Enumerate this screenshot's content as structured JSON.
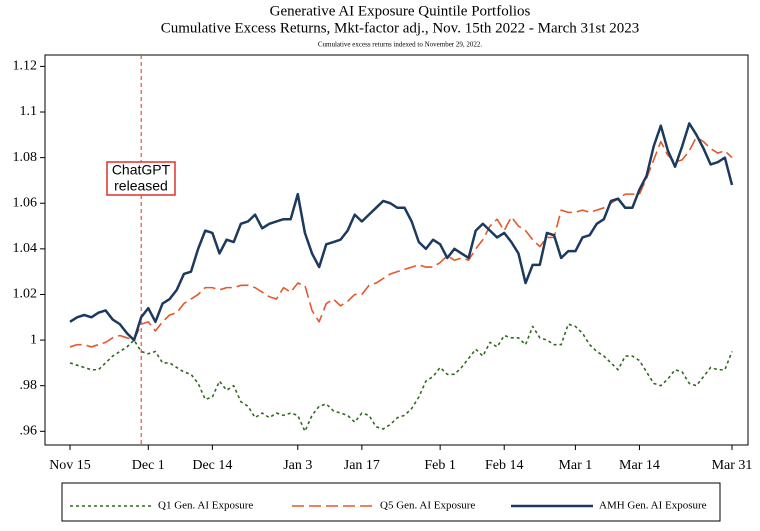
{
  "chart_data": {
    "type": "line",
    "title": [
      "Generative AI Exposure Quintile Portfolios",
      "Cumulative Excess Returns, Mkt-factor adj., Nov. 15th 2022 - March 31st 2023"
    ],
    "subtitle": "Cumulative excess returns indexed to November 29, 2022.",
    "annotation": [
      "ChatGPT",
      "released"
    ],
    "categories": [
      "Nov 15",
      null,
      null,
      null,
      null,
      null,
      null,
      null,
      null,
      null,
      null,
      "Dec 1",
      null,
      null,
      null,
      null,
      null,
      null,
      null,
      null,
      "Dec 14",
      null,
      null,
      null,
      null,
      null,
      null,
      null,
      null,
      null,
      null,
      null,
      "Jan 3",
      null,
      null,
      null,
      null,
      null,
      null,
      null,
      null,
      "Jan 17",
      null,
      null,
      null,
      null,
      null,
      null,
      null,
      null,
      null,
      null,
      "Feb 1",
      null,
      null,
      null,
      null,
      null,
      null,
      null,
      null,
      "Feb 14",
      null,
      null,
      null,
      null,
      null,
      null,
      null,
      null,
      null,
      "Mar 1",
      null,
      null,
      null,
      null,
      null,
      null,
      null,
      null,
      "Mar 14",
      null,
      null,
      null,
      null,
      null,
      null,
      null,
      null,
      null,
      null,
      null,
      null,
      "Mar 31"
    ],
    "series": [
      {
        "name": "Q1 Gen. AI Exposure",
        "color": "#2f6a1f",
        "line_style": "dotted",
        "values": [
          0.99,
          0.989,
          0.988,
          0.987,
          0.987,
          0.99,
          0.993,
          0.995,
          0.997,
          1.0,
          0.995,
          0.994,
          0.995,
          0.99,
          0.99,
          0.988,
          0.986,
          0.985,
          0.981,
          0.974,
          0.975,
          0.982,
          0.978,
          0.98,
          0.973,
          0.971,
          0.966,
          0.968,
          0.966,
          0.968,
          0.967,
          0.968,
          0.967,
          0.96,
          0.967,
          0.971,
          0.972,
          0.969,
          0.968,
          0.967,
          0.964,
          0.968,
          0.967,
          0.962,
          0.961,
          0.963,
          0.966,
          0.967,
          0.97,
          0.975,
          0.982,
          0.984,
          0.988,
          0.985,
          0.985,
          0.988,
          0.992,
          0.996,
          0.993,
          0.999,
          0.997,
          1.002,
          1.001,
          1.001,
          0.998,
          1.006,
          1.001,
          1.0,
          0.998,
          0.998,
          1.007,
          1.006,
          1.003,
          0.998,
          0.995,
          0.993,
          0.99,
          0.987,
          0.993,
          0.993,
          0.991,
          0.986,
          0.981,
          0.98,
          0.983,
          0.987,
          0.986,
          0.981,
          0.98,
          0.984,
          0.988,
          0.987,
          0.987,
          0.995
        ]
      },
      {
        "name": "Q5 Gen. AI Exposure",
        "color": "#e4582c",
        "line_style": "dashed",
        "values": [
          0.997,
          0.998,
          0.998,
          0.997,
          0.998,
          0.999,
          1.001,
          1.002,
          1.001,
          1.0,
          1.007,
          1.008,
          1.004,
          1.008,
          1.011,
          1.012,
          1.016,
          1.018,
          1.02,
          1.023,
          1.023,
          1.022,
          1.023,
          1.023,
          1.024,
          1.024,
          1.023,
          1.021,
          1.019,
          1.018,
          1.023,
          1.021,
          1.025,
          1.024,
          1.013,
          1.008,
          1.016,
          1.018,
          1.015,
          1.017,
          1.02,
          1.02,
          1.024,
          1.025,
          1.027,
          1.029,
          1.03,
          1.031,
          1.032,
          1.033,
          1.032,
          1.032,
          1.034,
          1.037,
          1.035,
          1.036,
          1.035,
          1.04,
          1.044,
          1.05,
          1.053,
          1.048,
          1.054,
          1.05,
          1.048,
          1.044,
          1.041,
          1.045,
          1.045,
          1.057,
          1.056,
          1.056,
          1.057,
          1.056,
          1.057,
          1.058,
          1.06,
          1.062,
          1.064,
          1.064,
          1.064,
          1.071,
          1.079,
          1.087,
          1.081,
          1.078,
          1.079,
          1.083,
          1.089,
          1.087,
          1.084,
          1.082,
          1.083,
          1.08
        ]
      },
      {
        "name": "AMH Gen. AI Exposure",
        "color": "#1c3a5e",
        "line_style": "solid",
        "values": [
          1.008,
          1.01,
          1.011,
          1.01,
          1.012,
          1.013,
          1.009,
          1.007,
          1.003,
          1.0,
          1.01,
          1.014,
          1.008,
          1.016,
          1.018,
          1.022,
          1.029,
          1.03,
          1.04,
          1.048,
          1.047,
          1.038,
          1.044,
          1.043,
          1.051,
          1.052,
          1.055,
          1.049,
          1.051,
          1.052,
          1.053,
          1.053,
          1.064,
          1.047,
          1.038,
          1.032,
          1.042,
          1.043,
          1.044,
          1.048,
          1.055,
          1.052,
          1.055,
          1.058,
          1.061,
          1.06,
          1.058,
          1.058,
          1.052,
          1.043,
          1.04,
          1.044,
          1.042,
          1.036,
          1.04,
          1.038,
          1.036,
          1.048,
          1.051,
          1.048,
          1.045,
          1.047,
          1.043,
          1.038,
          1.025,
          1.033,
          1.033,
          1.047,
          1.046,
          1.036,
          1.039,
          1.039,
          1.045,
          1.046,
          1.051,
          1.053,
          1.061,
          1.062,
          1.058,
          1.058,
          1.066,
          1.072,
          1.085,
          1.094,
          1.083,
          1.076,
          1.085,
          1.095,
          1.09,
          1.084,
          1.077,
          1.078,
          1.08,
          1.068
        ]
      }
    ],
    "ylim": [
      0.954,
      1.125
    ],
    "yticks": [
      {
        "value": 0.96,
        "label": ".96"
      },
      {
        "value": 0.98,
        "label": ".98"
      },
      1,
      1.02,
      1.04,
      1.06,
      1.08,
      1.1,
      1.12
    ],
    "grid": false,
    "legend": "bottom"
  }
}
